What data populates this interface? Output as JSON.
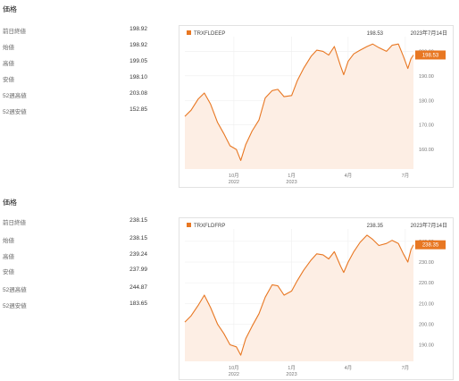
{
  "panels": [
    {
      "section_title": "価格",
      "stats": [
        {
          "label": "前日終値",
          "value": "198.92"
        },
        {
          "label": "始値",
          "value": "198.92"
        },
        {
          "label": "高値",
          "value": "199.05"
        },
        {
          "label": "安値",
          "value": "198.10"
        },
        {
          "label": "52週高値",
          "value": "203.08"
        },
        {
          "label": "52週安値",
          "value": "152.85"
        }
      ],
      "chart": {
        "legend": "TRXFLDEEP",
        "header_value": "198.53",
        "header_date": "2023年7月14日",
        "current_tag": "198.53",
        "accent_color": "#e87722",
        "fill_color": "#fdeee4",
        "y_ticks": [
          "200.00",
          "190.00",
          "180.00",
          "170.00",
          "160.00"
        ],
        "x_ticks": [
          {
            "month": "10月",
            "year": "2022"
          },
          {
            "month": "1月",
            "year": "2023"
          },
          {
            "month": "4月",
            "year": ""
          },
          {
            "month": "7月",
            "year": ""
          }
        ]
      }
    },
    {
      "section_title": "価格",
      "stats": [
        {
          "label": "前日終値",
          "value": "238.15"
        },
        {
          "label": "始値",
          "value": "238.15"
        },
        {
          "label": "高値",
          "value": "239.24"
        },
        {
          "label": "安値",
          "value": "237.99"
        },
        {
          "label": "52週高値",
          "value": "244.87"
        },
        {
          "label": "52週安値",
          "value": "183.65"
        }
      ],
      "chart": {
        "legend": "TRXFLDFRP",
        "header_value": "238.35",
        "header_date": "2023年7月14日",
        "current_tag": "238.35",
        "accent_color": "#e87722",
        "fill_color": "#fdeee4",
        "y_ticks": [
          "240.00",
          "230.00",
          "220.00",
          "210.00",
          "200.00",
          "190.00"
        ],
        "x_ticks": [
          {
            "month": "10月",
            "year": "2022"
          },
          {
            "month": "1月",
            "year": "2023"
          },
          {
            "month": "4月",
            "year": ""
          },
          {
            "month": "7月",
            "year": ""
          }
        ]
      }
    }
  ],
  "chart_data": [
    {
      "type": "area",
      "legend": "TRXFLDEEP",
      "x_range": [
        "2022-07-15",
        "2023-07-14"
      ],
      "ylim": [
        152,
        206
      ],
      "x_ticks": [
        "10月 2022",
        "1月 2023",
        "4月",
        "7月"
      ],
      "y_ticks": [
        160,
        170,
        180,
        190,
        200
      ],
      "grid": true,
      "points": [
        [
          "2022-07-15",
          173.5
        ],
        [
          "2022-07-25",
          176.0
        ],
        [
          "2022-08-05",
          180.5
        ],
        [
          "2022-08-15",
          183.0
        ],
        [
          "2022-08-25",
          178.5
        ],
        [
          "2022-09-05",
          171.0
        ],
        [
          "2022-09-15",
          166.5
        ],
        [
          "2022-09-25",
          161.5
        ],
        [
          "2022-10-05",
          160.0
        ],
        [
          "2022-10-12",
          155.5
        ],
        [
          "2022-10-20",
          162.0
        ],
        [
          "2022-10-30",
          167.5
        ],
        [
          "2022-11-10",
          172.0
        ],
        [
          "2022-11-20",
          181.0
        ],
        [
          "2022-12-01",
          184.0
        ],
        [
          "2022-12-10",
          184.5
        ],
        [
          "2022-12-20",
          181.5
        ],
        [
          "2023-01-01",
          182.0
        ],
        [
          "2023-01-10",
          188.0
        ],
        [
          "2023-01-20",
          193.0
        ],
        [
          "2023-02-01",
          198.0
        ],
        [
          "2023-02-10",
          200.5
        ],
        [
          "2023-02-20",
          200.0
        ],
        [
          "2023-03-01",
          198.5
        ],
        [
          "2023-03-10",
          202.0
        ],
        [
          "2023-03-20",
          194.0
        ],
        [
          "2023-03-25",
          190.5
        ],
        [
          "2023-04-01",
          196.0
        ],
        [
          "2023-04-10",
          199.0
        ],
        [
          "2023-04-20",
          200.5
        ],
        [
          "2023-05-01",
          202.0
        ],
        [
          "2023-05-10",
          203.0
        ],
        [
          "2023-05-20",
          201.5
        ],
        [
          "2023-06-01",
          200.0
        ],
        [
          "2023-06-10",
          202.5
        ],
        [
          "2023-06-20",
          203.0
        ],
        [
          "2023-06-28",
          198.0
        ],
        [
          "2023-07-05",
          193.0
        ],
        [
          "2023-07-10",
          197.0
        ],
        [
          "2023-07-14",
          198.53
        ]
      ]
    },
    {
      "type": "area",
      "legend": "TRXFLDFRP",
      "x_range": [
        "2022-07-15",
        "2023-07-14"
      ],
      "ylim": [
        182,
        246
      ],
      "x_ticks": [
        "10月 2022",
        "1月 2023",
        "4月",
        "7月"
      ],
      "y_ticks": [
        190,
        200,
        210,
        220,
        230,
        240
      ],
      "grid": true,
      "points": [
        [
          "2022-07-15",
          201.0
        ],
        [
          "2022-07-25",
          204.0
        ],
        [
          "2022-08-05",
          209.0
        ],
        [
          "2022-08-15",
          214.0
        ],
        [
          "2022-08-25",
          208.0
        ],
        [
          "2022-09-05",
          200.0
        ],
        [
          "2022-09-15",
          195.5
        ],
        [
          "2022-09-25",
          190.0
        ],
        [
          "2022-10-05",
          189.0
        ],
        [
          "2022-10-12",
          185.0
        ],
        [
          "2022-10-20",
          193.0
        ],
        [
          "2022-10-30",
          199.0
        ],
        [
          "2022-11-10",
          205.0
        ],
        [
          "2022-11-20",
          213.0
        ],
        [
          "2022-12-01",
          219.0
        ],
        [
          "2022-12-10",
          218.5
        ],
        [
          "2022-12-20",
          214.0
        ],
        [
          "2023-01-01",
          216.0
        ],
        [
          "2023-01-10",
          221.0
        ],
        [
          "2023-01-20",
          226.0
        ],
        [
          "2023-02-01",
          231.0
        ],
        [
          "2023-02-10",
          234.0
        ],
        [
          "2023-02-20",
          233.5
        ],
        [
          "2023-03-01",
          231.5
        ],
        [
          "2023-03-10",
          235.0
        ],
        [
          "2023-03-20",
          228.0
        ],
        [
          "2023-03-25",
          225.0
        ],
        [
          "2023-04-01",
          230.0
        ],
        [
          "2023-04-10",
          235.0
        ],
        [
          "2023-04-20",
          239.5
        ],
        [
          "2023-05-01",
          243.0
        ],
        [
          "2023-05-10",
          241.0
        ],
        [
          "2023-05-20",
          238.0
        ],
        [
          "2023-06-01",
          239.0
        ],
        [
          "2023-06-10",
          240.5
        ],
        [
          "2023-06-20",
          239.0
        ],
        [
          "2023-06-28",
          234.0
        ],
        [
          "2023-07-05",
          230.0
        ],
        [
          "2023-07-10",
          236.0
        ],
        [
          "2023-07-14",
          238.35
        ]
      ]
    }
  ]
}
